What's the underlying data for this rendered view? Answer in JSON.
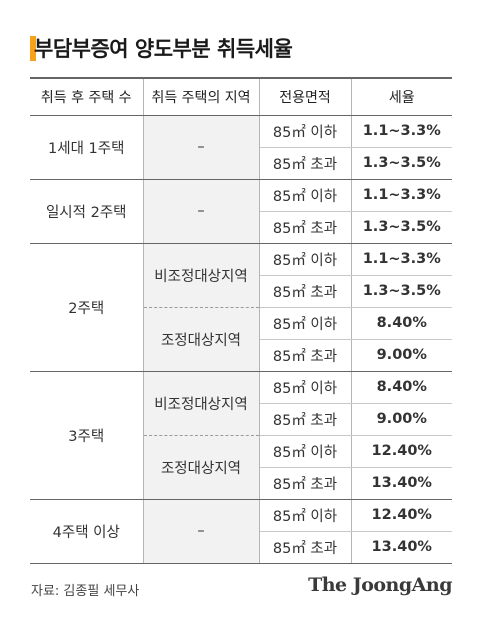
{
  "title": "부담부증여 양도부분 취득세율",
  "accent_color": "#f7a21b",
  "rate_color": "#e8401b",
  "headers": [
    "취득 후 주택 수",
    "취득 주택의 지역",
    "전용면적",
    "세율"
  ],
  "rows": [
    {
      "count": "1세대 1주택",
      "region": "–",
      "area": "85㎡ 이하",
      "rate": "1.1~3.3%"
    },
    {
      "area": "85㎡ 초과",
      "rate": "1.3~3.5%"
    },
    {
      "count": "일시적 2주택",
      "region": "–",
      "area": "85㎡ 이하",
      "rate": "1.1~3.3%"
    },
    {
      "area": "85㎡ 초과",
      "rate": "1.3~3.5%"
    },
    {
      "count": "2주택",
      "region": "비조정대상지역",
      "area": "85㎡ 이하",
      "rate": "1.1~3.3%"
    },
    {
      "area": "85㎡ 초과",
      "rate": "1.3~3.5%"
    },
    {
      "region": "조정대상지역",
      "area": "85㎡ 이하",
      "rate": "8.40%"
    },
    {
      "area": "85㎡ 초과",
      "rate": "9.00%"
    },
    {
      "count": "3주택",
      "region": "비조정대상지역",
      "area": "85㎡ 이하",
      "rate": "8.40%"
    },
    {
      "area": "85㎡ 초과",
      "rate": "9.00%"
    },
    {
      "region": "조정대상지역",
      "area": "85㎡ 이하",
      "rate": "12.40%"
    },
    {
      "area": "85㎡ 초과",
      "rate": "13.40%"
    },
    {
      "count": "4주택 이상",
      "region": "–",
      "area": "85㎡ 이하",
      "rate": "12.40%"
    },
    {
      "area": "85㎡ 초과",
      "rate": "13.40%"
    }
  ],
  "source": "자료: 김종필 세무사",
  "logo": "The JoongAng"
}
